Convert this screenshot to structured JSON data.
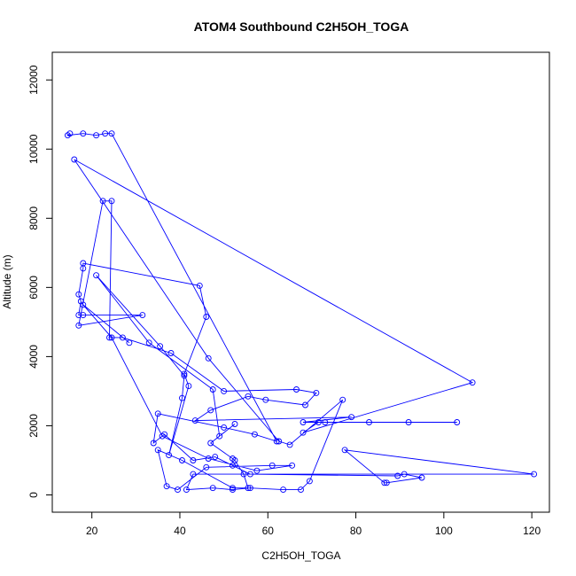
{
  "chart_data": {
    "type": "line",
    "title": "ATOM4 Southbound C2H5OH_TOGA",
    "xlabel": "C2H5OH_TOGA",
    "ylabel": "Altitude (m)",
    "xlim": [
      11,
      124
    ],
    "ylim": [
      -500,
      12800
    ],
    "x_ticks": [
      20,
      40,
      60,
      80,
      100,
      120
    ],
    "y_ticks": [
      0,
      2000,
      4000,
      6000,
      8000,
      10000,
      12000
    ],
    "marker": "open-circle",
    "grid": false,
    "legend": "none",
    "color": "#0000ff",
    "points": [
      {
        "x": 15.0,
        "y": 10450
      },
      {
        "x": 14.5,
        "y": 10400
      },
      {
        "x": 18.0,
        "y": 10450
      },
      {
        "x": 21.0,
        "y": 10400
      },
      {
        "x": 23.0,
        "y": 10450
      },
      {
        "x": 24.5,
        "y": 10450
      },
      {
        "x": 62.0,
        "y": 1550
      },
      {
        "x": 57.0,
        "y": 1750
      },
      {
        "x": 50.0,
        "y": 1950
      },
      {
        "x": 35.0,
        "y": 2350
      },
      {
        "x": 34.0,
        "y": 1500
      },
      {
        "x": 36.5,
        "y": 1750
      },
      {
        "x": 43.0,
        "y": 1000
      },
      {
        "x": 48.0,
        "y": 1100
      },
      {
        "x": 52.0,
        "y": 850
      },
      {
        "x": 56.0,
        "y": 600
      },
      {
        "x": 89.5,
        "y": 550
      },
      {
        "x": 91.0,
        "y": 600
      },
      {
        "x": 95.0,
        "y": 500
      },
      {
        "x": 87.0,
        "y": 350
      },
      {
        "x": 86.5,
        "y": 350
      },
      {
        "x": 77.5,
        "y": 1300
      },
      {
        "x": 120.5,
        "y": 600
      },
      {
        "x": 43.0,
        "y": 600
      },
      {
        "x": 41.5,
        "y": 150
      },
      {
        "x": 47.5,
        "y": 200
      },
      {
        "x": 52.0,
        "y": 150
      },
      {
        "x": 56.0,
        "y": 200
      },
      {
        "x": 63.5,
        "y": 150
      },
      {
        "x": 67.5,
        "y": 150
      },
      {
        "x": 69.5,
        "y": 400
      },
      {
        "x": 77.0,
        "y": 2750
      },
      {
        "x": 65.0,
        "y": 1450
      },
      {
        "x": 62.5,
        "y": 1550
      },
      {
        "x": 46.5,
        "y": 3950
      },
      {
        "x": 16.0,
        "y": 9700
      },
      {
        "x": 106.5,
        "y": 3250
      },
      {
        "x": 68.0,
        "y": 1800
      },
      {
        "x": 71.5,
        "y": 2100
      },
      {
        "x": 103.0,
        "y": 2100
      },
      {
        "x": 92.0,
        "y": 2100
      },
      {
        "x": 83.0,
        "y": 2100
      },
      {
        "x": 73.0,
        "y": 2100
      },
      {
        "x": 68.0,
        "y": 2100
      },
      {
        "x": 79.0,
        "y": 2250
      },
      {
        "x": 43.5,
        "y": 2150
      },
      {
        "x": 47.0,
        "y": 2450
      },
      {
        "x": 55.5,
        "y": 2850
      },
      {
        "x": 59.5,
        "y": 2750
      },
      {
        "x": 68.5,
        "y": 2600
      },
      {
        "x": 71.0,
        "y": 2950
      },
      {
        "x": 66.5,
        "y": 3050
      },
      {
        "x": 50.0,
        "y": 3000
      },
      {
        "x": 38.0,
        "y": 4100
      },
      {
        "x": 27.0,
        "y": 4550
      },
      {
        "x": 24.0,
        "y": 4550
      },
      {
        "x": 24.5,
        "y": 8500
      },
      {
        "x": 22.5,
        "y": 8500
      },
      {
        "x": 17.0,
        "y": 4900
      },
      {
        "x": 31.5,
        "y": 5200
      },
      {
        "x": 18.0,
        "y": 5200
      },
      {
        "x": 17.0,
        "y": 5200
      },
      {
        "x": 17.5,
        "y": 5600
      },
      {
        "x": 17.0,
        "y": 5800
      },
      {
        "x": 18.0,
        "y": 6550
      },
      {
        "x": 18.0,
        "y": 6700
      },
      {
        "x": 44.5,
        "y": 6050
      },
      {
        "x": 46.0,
        "y": 5150
      },
      {
        "x": 41.0,
        "y": 3500
      },
      {
        "x": 42.0,
        "y": 3150
      },
      {
        "x": 37.5,
        "y": 1150
      },
      {
        "x": 40.5,
        "y": 2800
      },
      {
        "x": 41.0,
        "y": 3450
      },
      {
        "x": 35.5,
        "y": 4300
      },
      {
        "x": 21.0,
        "y": 6350
      },
      {
        "x": 33.0,
        "y": 4400
      },
      {
        "x": 47.5,
        "y": 3050
      },
      {
        "x": 49.0,
        "y": 1700
      },
      {
        "x": 52.5,
        "y": 2050
      },
      {
        "x": 47.0,
        "y": 1500
      },
      {
        "x": 52.0,
        "y": 1050
      },
      {
        "x": 52.5,
        "y": 1000
      },
      {
        "x": 54.5,
        "y": 600
      },
      {
        "x": 55.5,
        "y": 200
      },
      {
        "x": 52.0,
        "y": 200
      },
      {
        "x": 40.5,
        "y": 1000
      },
      {
        "x": 35.0,
        "y": 1300
      },
      {
        "x": 37.0,
        "y": 250
      },
      {
        "x": 39.5,
        "y": 150
      },
      {
        "x": 46.0,
        "y": 800
      },
      {
        "x": 61.0,
        "y": 850
      },
      {
        "x": 65.5,
        "y": 850
      },
      {
        "x": 57.5,
        "y": 700
      },
      {
        "x": 46.5,
        "y": 1050
      },
      {
        "x": 36.0,
        "y": 1700
      },
      {
        "x": 24.5,
        "y": 4550
      },
      {
        "x": 18.0,
        "y": 5500
      },
      {
        "x": 28.5,
        "y": 4400
      }
    ]
  }
}
